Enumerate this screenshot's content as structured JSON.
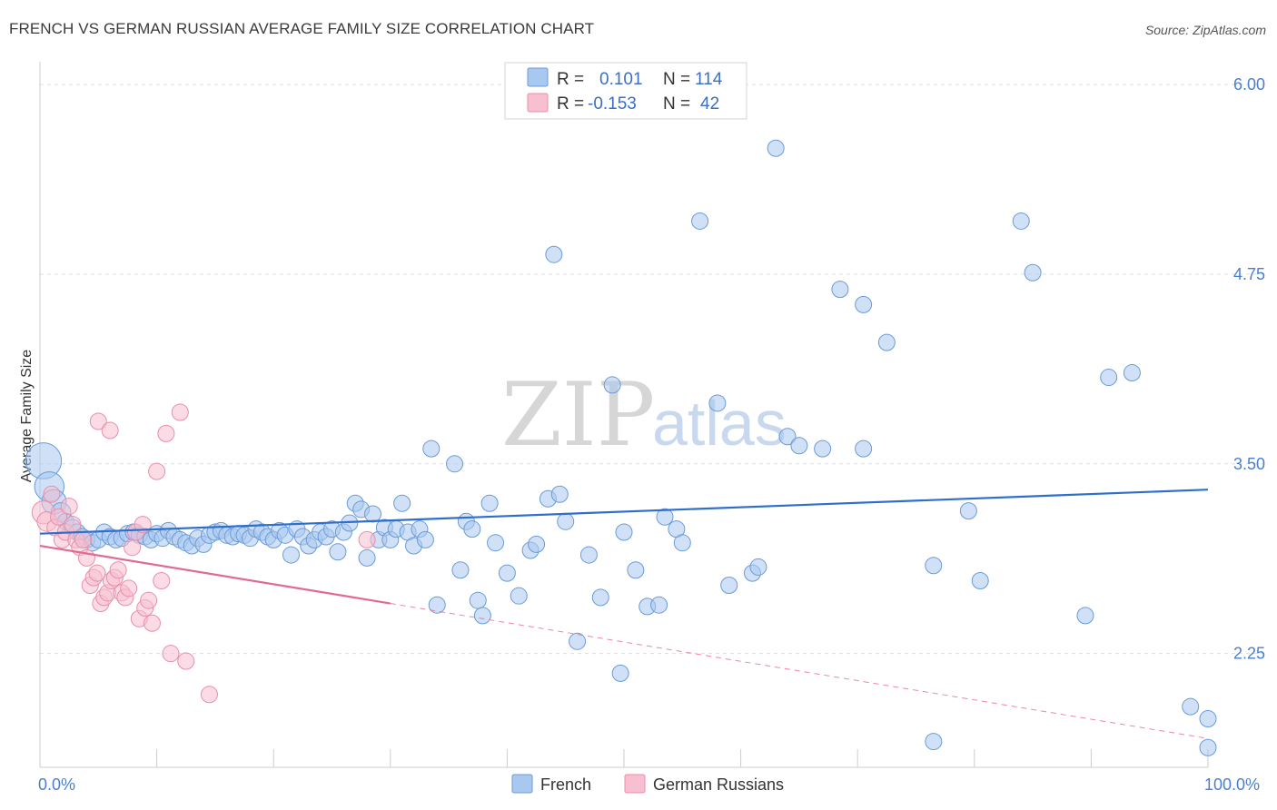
{
  "header": {
    "title": "FRENCH VS GERMAN RUSSIAN AVERAGE FAMILY SIZE CORRELATION CHART",
    "source": "Source: ZipAtlas.com"
  },
  "watermark": {
    "zip": "ZIP",
    "atlas": "atlas"
  },
  "colors": {
    "french_fill": "#a9c8f0",
    "french_stroke": "#6a9bd8",
    "french_line": "#2f6fcc",
    "german_fill": "#f7bfd0",
    "german_stroke": "#e88fab",
    "german_line": "#e06a92",
    "grid": "#dddddd",
    "axis_label": "#4a7fd0"
  },
  "legend": {
    "rows": [
      {
        "r_label": "R =",
        "r_value": "0.101",
        "n_label": "N =",
        "n_value": "114"
      },
      {
        "r_label": "R =",
        "r_value": "-0.153",
        "n_label": "N =",
        "n_value": "42"
      }
    ]
  },
  "bottom_legend": {
    "french": "French",
    "german": "German Russians"
  },
  "chart_data": {
    "type": "scatter",
    "title": "FRENCH VS GERMAN RUSSIAN AVERAGE FAMILY SIZE CORRELATION CHART",
    "xlabel": "",
    "ylabel": "Average Family Size",
    "xlim": [
      0,
      100
    ],
    "ylim": [
      1.5,
      6.15
    ],
    "x_tick_labels": [
      "0.0%",
      "100.0%"
    ],
    "y_ticks": [
      2.25,
      3.5,
      4.75,
      6.0
    ],
    "y_tick_labels": [
      "2.25",
      "3.50",
      "4.75",
      "6.00"
    ],
    "series": [
      {
        "name": "French",
        "r": 0.101,
        "n": 114,
        "trend": {
          "x": [
            0,
            100
          ],
          "y": [
            3.04,
            3.33
          ]
        },
        "points": [
          [
            0.3,
            3.52,
            2.2
          ],
          [
            0.8,
            3.35,
            1.8
          ],
          [
            1.2,
            3.25,
            1.5
          ],
          [
            1.8,
            3.18,
            1.2
          ],
          [
            2.2,
            3.12,
            1
          ],
          [
            2.8,
            3.08,
            1
          ],
          [
            3.2,
            3.05,
            1
          ],
          [
            3.6,
            3.02,
            1
          ],
          [
            4.0,
            3.0,
            1
          ],
          [
            4.5,
            2.98,
            1
          ],
          [
            5.0,
            3.0,
            1
          ],
          [
            5.5,
            3.05,
            1
          ],
          [
            6.0,
            3.02,
            1
          ],
          [
            6.5,
            3.0,
            1
          ],
          [
            7.0,
            3.01,
            1
          ],
          [
            7.5,
            3.04,
            1
          ],
          [
            8.0,
            3.05,
            1
          ],
          [
            8.5,
            3.03,
            1
          ],
          [
            9.0,
            3.02,
            1
          ],
          [
            9.5,
            3.0,
            1
          ],
          [
            10.0,
            3.04,
            1
          ],
          [
            10.5,
            3.01,
            1
          ],
          [
            11.0,
            3.06,
            1
          ],
          [
            11.5,
            3.02,
            1
          ],
          [
            12.0,
            3.0,
            1
          ],
          [
            12.5,
            2.98,
            1
          ],
          [
            13.0,
            2.96,
            1
          ],
          [
            13.5,
            3.01,
            1
          ],
          [
            14.0,
            2.97,
            1
          ],
          [
            14.5,
            3.03,
            1
          ],
          [
            15.0,
            3.05,
            1
          ],
          [
            15.5,
            3.06,
            1
          ],
          [
            16.0,
            3.03,
            1
          ],
          [
            16.5,
            3.02,
            1
          ],
          [
            17.0,
            3.04,
            1
          ],
          [
            17.5,
            3.03,
            1
          ],
          [
            18.0,
            3.01,
            1
          ],
          [
            18.5,
            3.07,
            1
          ],
          [
            19.0,
            3.05,
            1
          ],
          [
            19.5,
            3.02,
            1
          ],
          [
            20.0,
            3.0,
            1
          ],
          [
            20.5,
            3.06,
            1
          ],
          [
            21.0,
            3.03,
            1
          ],
          [
            21.5,
            2.9,
            1
          ],
          [
            22.0,
            3.07,
            1
          ],
          [
            22.5,
            3.02,
            1
          ],
          [
            23.0,
            2.96,
            1
          ],
          [
            23.5,
            3.0,
            1
          ],
          [
            24.0,
            3.05,
            1
          ],
          [
            24.5,
            3.02,
            1
          ],
          [
            25.0,
            3.07,
            1
          ],
          [
            25.5,
            2.92,
            1
          ],
          [
            26.0,
            3.05,
            1
          ],
          [
            26.5,
            3.11,
            1
          ],
          [
            27.0,
            3.24,
            1
          ],
          [
            27.5,
            3.2,
            1
          ],
          [
            28.0,
            2.88,
            1
          ],
          [
            28.5,
            3.17,
            1
          ],
          [
            29.0,
            3.0,
            1
          ],
          [
            29.5,
            3.08,
            1
          ],
          [
            30.0,
            3.0,
            1
          ],
          [
            30.5,
            3.07,
            1
          ],
          [
            31.0,
            3.24,
            1
          ],
          [
            31.5,
            3.05,
            1
          ],
          [
            32.0,
            2.96,
            1
          ],
          [
            32.5,
            3.07,
            1
          ],
          [
            33.0,
            3.0,
            1
          ],
          [
            33.5,
            3.6,
            1
          ],
          [
            34.0,
            2.57,
            1
          ],
          [
            35.5,
            3.5,
            1
          ],
          [
            36.0,
            2.8,
            1
          ],
          [
            36.5,
            3.12,
            1
          ],
          [
            37.0,
            3.07,
            1
          ],
          [
            37.5,
            2.6,
            1
          ],
          [
            37.9,
            2.5,
            1
          ],
          [
            38.5,
            3.24,
            1
          ],
          [
            39.0,
            2.98,
            1
          ],
          [
            40.0,
            2.78,
            1
          ],
          [
            41.0,
            2.63,
            1
          ],
          [
            42.0,
            2.93,
            1
          ],
          [
            42.5,
            2.97,
            1
          ],
          [
            43.5,
            3.27,
            1
          ],
          [
            44.0,
            4.88,
            1
          ],
          [
            44.5,
            3.3,
            1
          ],
          [
            45.0,
            3.12,
            1
          ],
          [
            46.0,
            2.33,
            1
          ],
          [
            47.0,
            2.9,
            1
          ],
          [
            48.0,
            2.62,
            1
          ],
          [
            49.0,
            4.02,
            1
          ],
          [
            49.7,
            2.12,
            1
          ],
          [
            50.0,
            3.05,
            1
          ],
          [
            51.0,
            2.8,
            1
          ],
          [
            52.0,
            2.56,
            1
          ],
          [
            53.0,
            2.57,
            1
          ],
          [
            53.5,
            3.15,
            1
          ],
          [
            54.5,
            3.07,
            1
          ],
          [
            55.0,
            2.98,
            1
          ],
          [
            56.5,
            5.1,
            1
          ],
          [
            58.0,
            3.9,
            1
          ],
          [
            59.0,
            2.7,
            1
          ],
          [
            61.0,
            2.78,
            1
          ],
          [
            61.5,
            2.82,
            1
          ],
          [
            63.0,
            5.58,
            1
          ],
          [
            64.0,
            3.68,
            1
          ],
          [
            65.0,
            3.62,
            1
          ],
          [
            67.0,
            3.6,
            1
          ],
          [
            68.5,
            4.65,
            1
          ],
          [
            70.5,
            3.6,
            1
          ],
          [
            70.5,
            4.55,
            1
          ],
          [
            72.5,
            4.3,
            1
          ],
          [
            76.5,
            2.83,
            1
          ],
          [
            76.5,
            1.67,
            1
          ],
          [
            79.5,
            3.19,
            1
          ],
          [
            80.5,
            2.73,
            1
          ],
          [
            84.0,
            5.1,
            1
          ],
          [
            85.0,
            4.76,
            1
          ],
          [
            89.5,
            2.5,
            1
          ],
          [
            91.5,
            4.07,
            1
          ],
          [
            93.5,
            4.1,
            1
          ],
          [
            98.5,
            1.9,
            1
          ],
          [
            104.5,
            1.82,
            1
          ],
          [
            100,
            1.63,
            1
          ]
        ]
      },
      {
        "name": "German Russians",
        "r": -0.153,
        "n": 42,
        "trend": {
          "x": [
            0,
            30
          ],
          "y": [
            2.96,
            2.58
          ]
        },
        "trend_extension": {
          "x": [
            30,
            100
          ],
          "y": [
            2.58,
            1.69
          ]
        },
        "points": [
          [
            0.3,
            3.18,
            1.4
          ],
          [
            0.6,
            3.12,
            1.2
          ],
          [
            1.0,
            3.3,
            1
          ],
          [
            1.3,
            3.08,
            1
          ],
          [
            1.6,
            3.15,
            1
          ],
          [
            1.9,
            3.0,
            1
          ],
          [
            2.2,
            3.05,
            1
          ],
          [
            2.5,
            3.22,
            1
          ],
          [
            2.8,
            3.1,
            1
          ],
          [
            3.1,
            3.0,
            1
          ],
          [
            3.4,
            2.95,
            1
          ],
          [
            3.7,
            3.0,
            1
          ],
          [
            4.0,
            2.88,
            1
          ],
          [
            4.3,
            2.7,
            1
          ],
          [
            4.6,
            2.75,
            1
          ],
          [
            4.9,
            2.78,
            1
          ],
          [
            5.2,
            2.58,
            1
          ],
          [
            5.5,
            2.62,
            1
          ],
          [
            5.8,
            2.65,
            1
          ],
          [
            6.1,
            2.73,
            1
          ],
          [
            6.4,
            2.75,
            1
          ],
          [
            6.7,
            2.8,
            1
          ],
          [
            7.0,
            2.65,
            1
          ],
          [
            7.3,
            2.62,
            1
          ],
          [
            7.6,
            2.68,
            1
          ],
          [
            7.9,
            2.95,
            1
          ],
          [
            8.2,
            3.05,
            1
          ],
          [
            8.5,
            2.48,
            1
          ],
          [
            8.8,
            3.1,
            1
          ],
          [
            9.0,
            2.55,
            1
          ],
          [
            9.3,
            2.6,
            1
          ],
          [
            9.6,
            2.45,
            1
          ],
          [
            10.0,
            3.45,
            1
          ],
          [
            10.4,
            2.73,
            1
          ],
          [
            10.8,
            3.7,
            1
          ],
          [
            11.2,
            2.25,
            1
          ],
          [
            12.0,
            3.84,
            1
          ],
          [
            12.5,
            2.2,
            1
          ],
          [
            5.0,
            3.78,
            1
          ],
          [
            6.0,
            3.72,
            1
          ],
          [
            14.5,
            1.98,
            1
          ],
          [
            28.0,
            3.0,
            1
          ]
        ]
      }
    ]
  }
}
